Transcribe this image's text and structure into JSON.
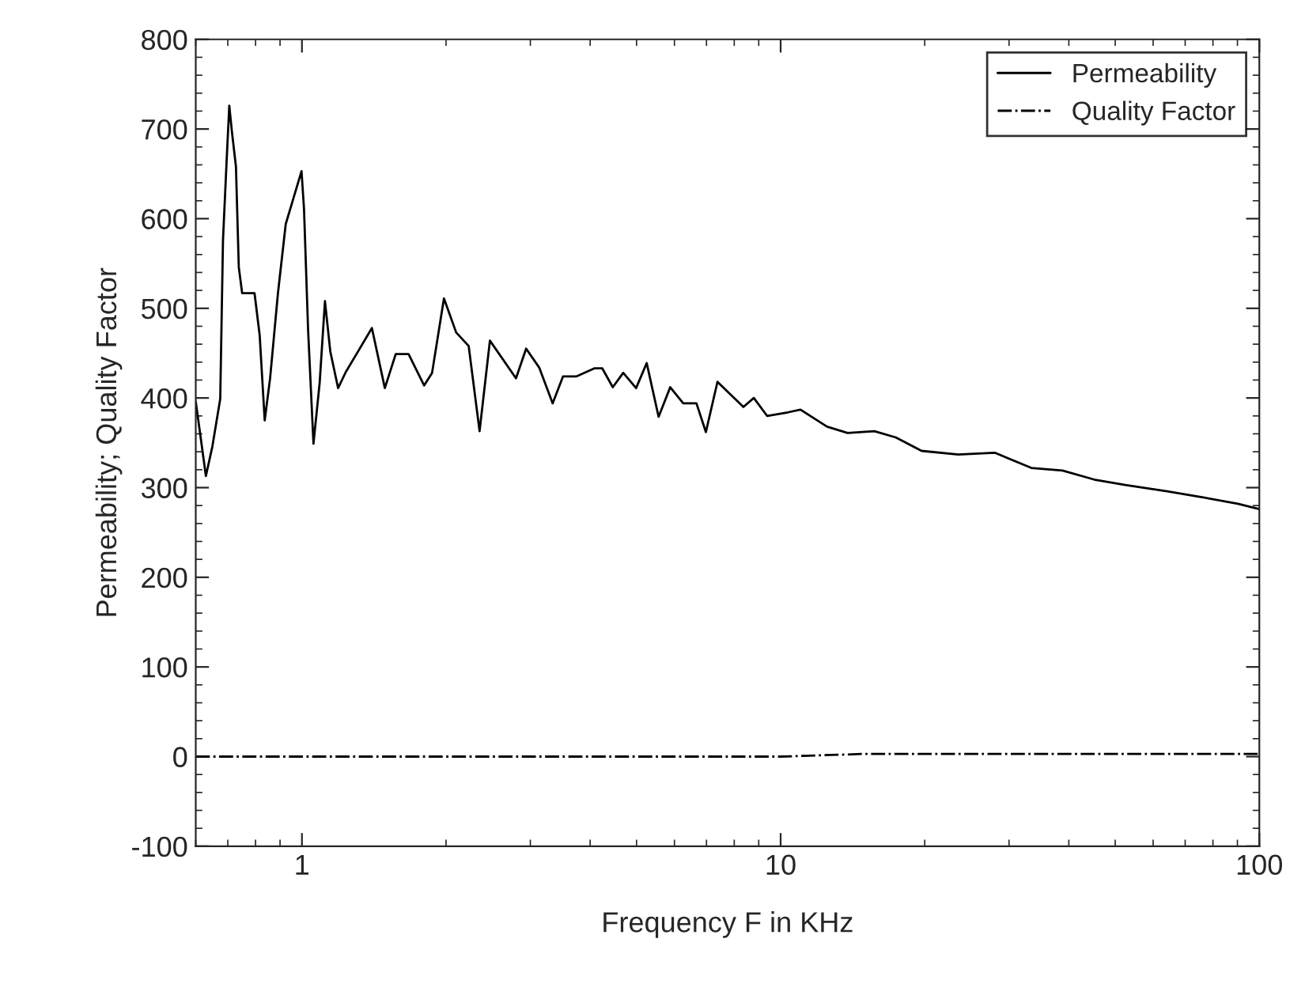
{
  "chart_data": {
    "type": "line",
    "xlabel": "Frequency F in KHz",
    "ylabel": "Permeability; Quality Factor",
    "log": "x",
    "xlim": [
      0.6,
      100
    ],
    "xticks": [
      1,
      10,
      100
    ],
    "ylim": [
      -100,
      800
    ],
    "yticks": [
      -100,
      0,
      100,
      200,
      300,
      400,
      500,
      600,
      700,
      800
    ],
    "grid": false,
    "legend": "top right",
    "marker": "none",
    "series": [
      {
        "name": "Permeability",
        "color": "#000000",
        "line_style": "solid",
        "x": [
          0.6,
          0.63,
          0.65,
          0.675,
          0.684,
          0.696,
          0.705,
          0.714,
          0.728,
          0.738,
          0.75,
          0.796,
          0.816,
          0.836,
          0.858,
          0.891,
          0.925,
          0.998,
          1.01,
          1.03,
          1.057,
          1.089,
          1.117,
          1.146,
          1.19,
          1.235,
          1.3,
          1.4,
          1.49,
          1.57,
          1.67,
          1.8,
          1.87,
          1.98,
          2.1,
          2.23,
          2.35,
          2.47,
          2.8,
          2.94,
          3.13,
          3.34,
          3.51,
          3.74,
          4.08,
          4.24,
          4.46,
          4.69,
          4.99,
          5.25,
          5.56,
          5.88,
          6.26,
          6.67,
          6.98,
          7.38,
          8.36,
          8.79,
          9.37,
          10.36,
          11.0,
          12.5,
          13.8,
          15.7,
          17.4,
          19.7,
          23.5,
          28.0,
          33.4,
          38.8,
          45.2,
          52.5,
          64.2,
          74.7,
          90.2,
          100
        ],
        "values": [
          396,
          313,
          346,
          399,
          576,
          664,
          726,
          697,
          658,
          546,
          517,
          517,
          470,
          375,
          422,
          517,
          594,
          653,
          611,
          476,
          349,
          417,
          508,
          452,
          411,
          429,
          449,
          478,
          411,
          449,
          449,
          414,
          428,
          511,
          473,
          458,
          363,
          464,
          422,
          455,
          434,
          394,
          424,
          424,
          433,
          433,
          412,
          428,
          411,
          439,
          379,
          412,
          394,
          394,
          362,
          418,
          390,
          400,
          380,
          384,
          387,
          368,
          361,
          363,
          356,
          341,
          337,
          339,
          322,
          319,
          309,
          303,
          296,
          290,
          282,
          276
        ]
      },
      {
        "name": "Quality Factor",
        "color": "#000000",
        "line_style": "dashdot",
        "x": [
          0.6,
          1,
          10,
          15,
          30,
          100
        ],
        "values": [
          0,
          0,
          0,
          3,
          3,
          3
        ]
      }
    ]
  }
}
